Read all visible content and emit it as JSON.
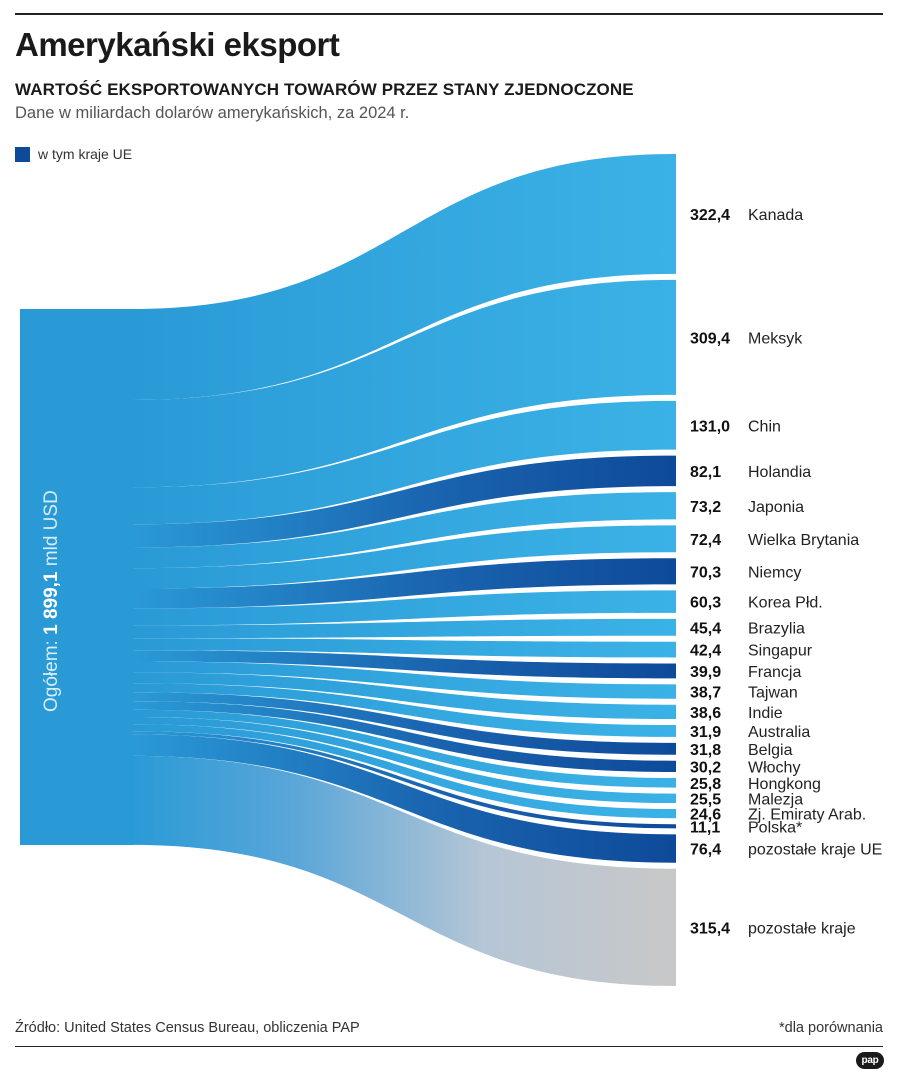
{
  "title": "Amerykański eksport",
  "subtitle": "WARTOŚĆ EKSPORTOWANYCH TOWARÓW PRZEZ STANY ZJEDNOCZONE",
  "description": "Dane w miliardach dolarów amerykańskich, za 2024 r.",
  "legend": {
    "label": "w tym kraje UE",
    "color": "#0e4a9a"
  },
  "total": {
    "prefix": "Ogółem: ",
    "value": "1 899,1",
    "unit": " mld USD"
  },
  "source": "Źródło: United States Census Bureau, obliczenia PAP",
  "note": "*dla porównania",
  "logo": "pap",
  "colors": {
    "non_eu": "#3bb2e6",
    "eu": "#0e4a9a",
    "rest": "#c8c8c8",
    "trunk": "#2a9ad6"
  },
  "chart_data": {
    "type": "sankey",
    "source_node": "Ogółem: 1 899,1 mld USD",
    "total": 1899.1,
    "flows": [
      {
        "name": "Kanada",
        "value": 322.4,
        "label": "322,4",
        "group": "non_eu"
      },
      {
        "name": "Meksyk",
        "value": 309.4,
        "label": "309,4",
        "group": "non_eu"
      },
      {
        "name": "Chin",
        "value": 131.0,
        "label": "131,0",
        "group": "non_eu"
      },
      {
        "name": "Holandia",
        "value": 82.1,
        "label": "82,1",
        "group": "eu"
      },
      {
        "name": "Japonia",
        "value": 73.2,
        "label": "73,2",
        "group": "non_eu"
      },
      {
        "name": "Wielka Brytania",
        "value": 72.4,
        "label": "72,4",
        "group": "non_eu"
      },
      {
        "name": "Niemcy",
        "value": 70.3,
        "label": "70,3",
        "group": "eu"
      },
      {
        "name": "Korea Płd.",
        "value": 60.3,
        "label": "60,3",
        "group": "non_eu"
      },
      {
        "name": "Brazylia",
        "value": 45.4,
        "label": "45,4",
        "group": "non_eu"
      },
      {
        "name": "Singapur",
        "value": 42.4,
        "label": "42,4",
        "group": "non_eu"
      },
      {
        "name": "Francja",
        "value": 39.9,
        "label": "39,9",
        "group": "eu"
      },
      {
        "name": "Tajwan",
        "value": 38.7,
        "label": "38,7",
        "group": "non_eu"
      },
      {
        "name": "Indie",
        "value": 38.6,
        "label": "38,6",
        "group": "non_eu"
      },
      {
        "name": "Australia",
        "value": 31.9,
        "label": "31,9",
        "group": "non_eu"
      },
      {
        "name": "Belgia",
        "value": 31.8,
        "label": "31,8",
        "group": "eu"
      },
      {
        "name": "Włochy",
        "value": 30.2,
        "label": "30,2",
        "group": "eu"
      },
      {
        "name": "Hongkong",
        "value": 25.8,
        "label": "25,8",
        "group": "non_eu"
      },
      {
        "name": "Malezja",
        "value": 25.5,
        "label": "25,5",
        "group": "non_eu"
      },
      {
        "name": "Zj. Emiraty Arab.",
        "value": 24.6,
        "label": "24,6",
        "group": "non_eu"
      },
      {
        "name": "Polska*",
        "value": 11.1,
        "label": "11,1",
        "group": "eu"
      },
      {
        "name": "pozostałe kraje UE",
        "value": 76.4,
        "label": "76,4",
        "group": "eu"
      },
      {
        "name": "pozostałe kraje",
        "value": 315.4,
        "label": "315,4",
        "group": "rest"
      }
    ]
  }
}
